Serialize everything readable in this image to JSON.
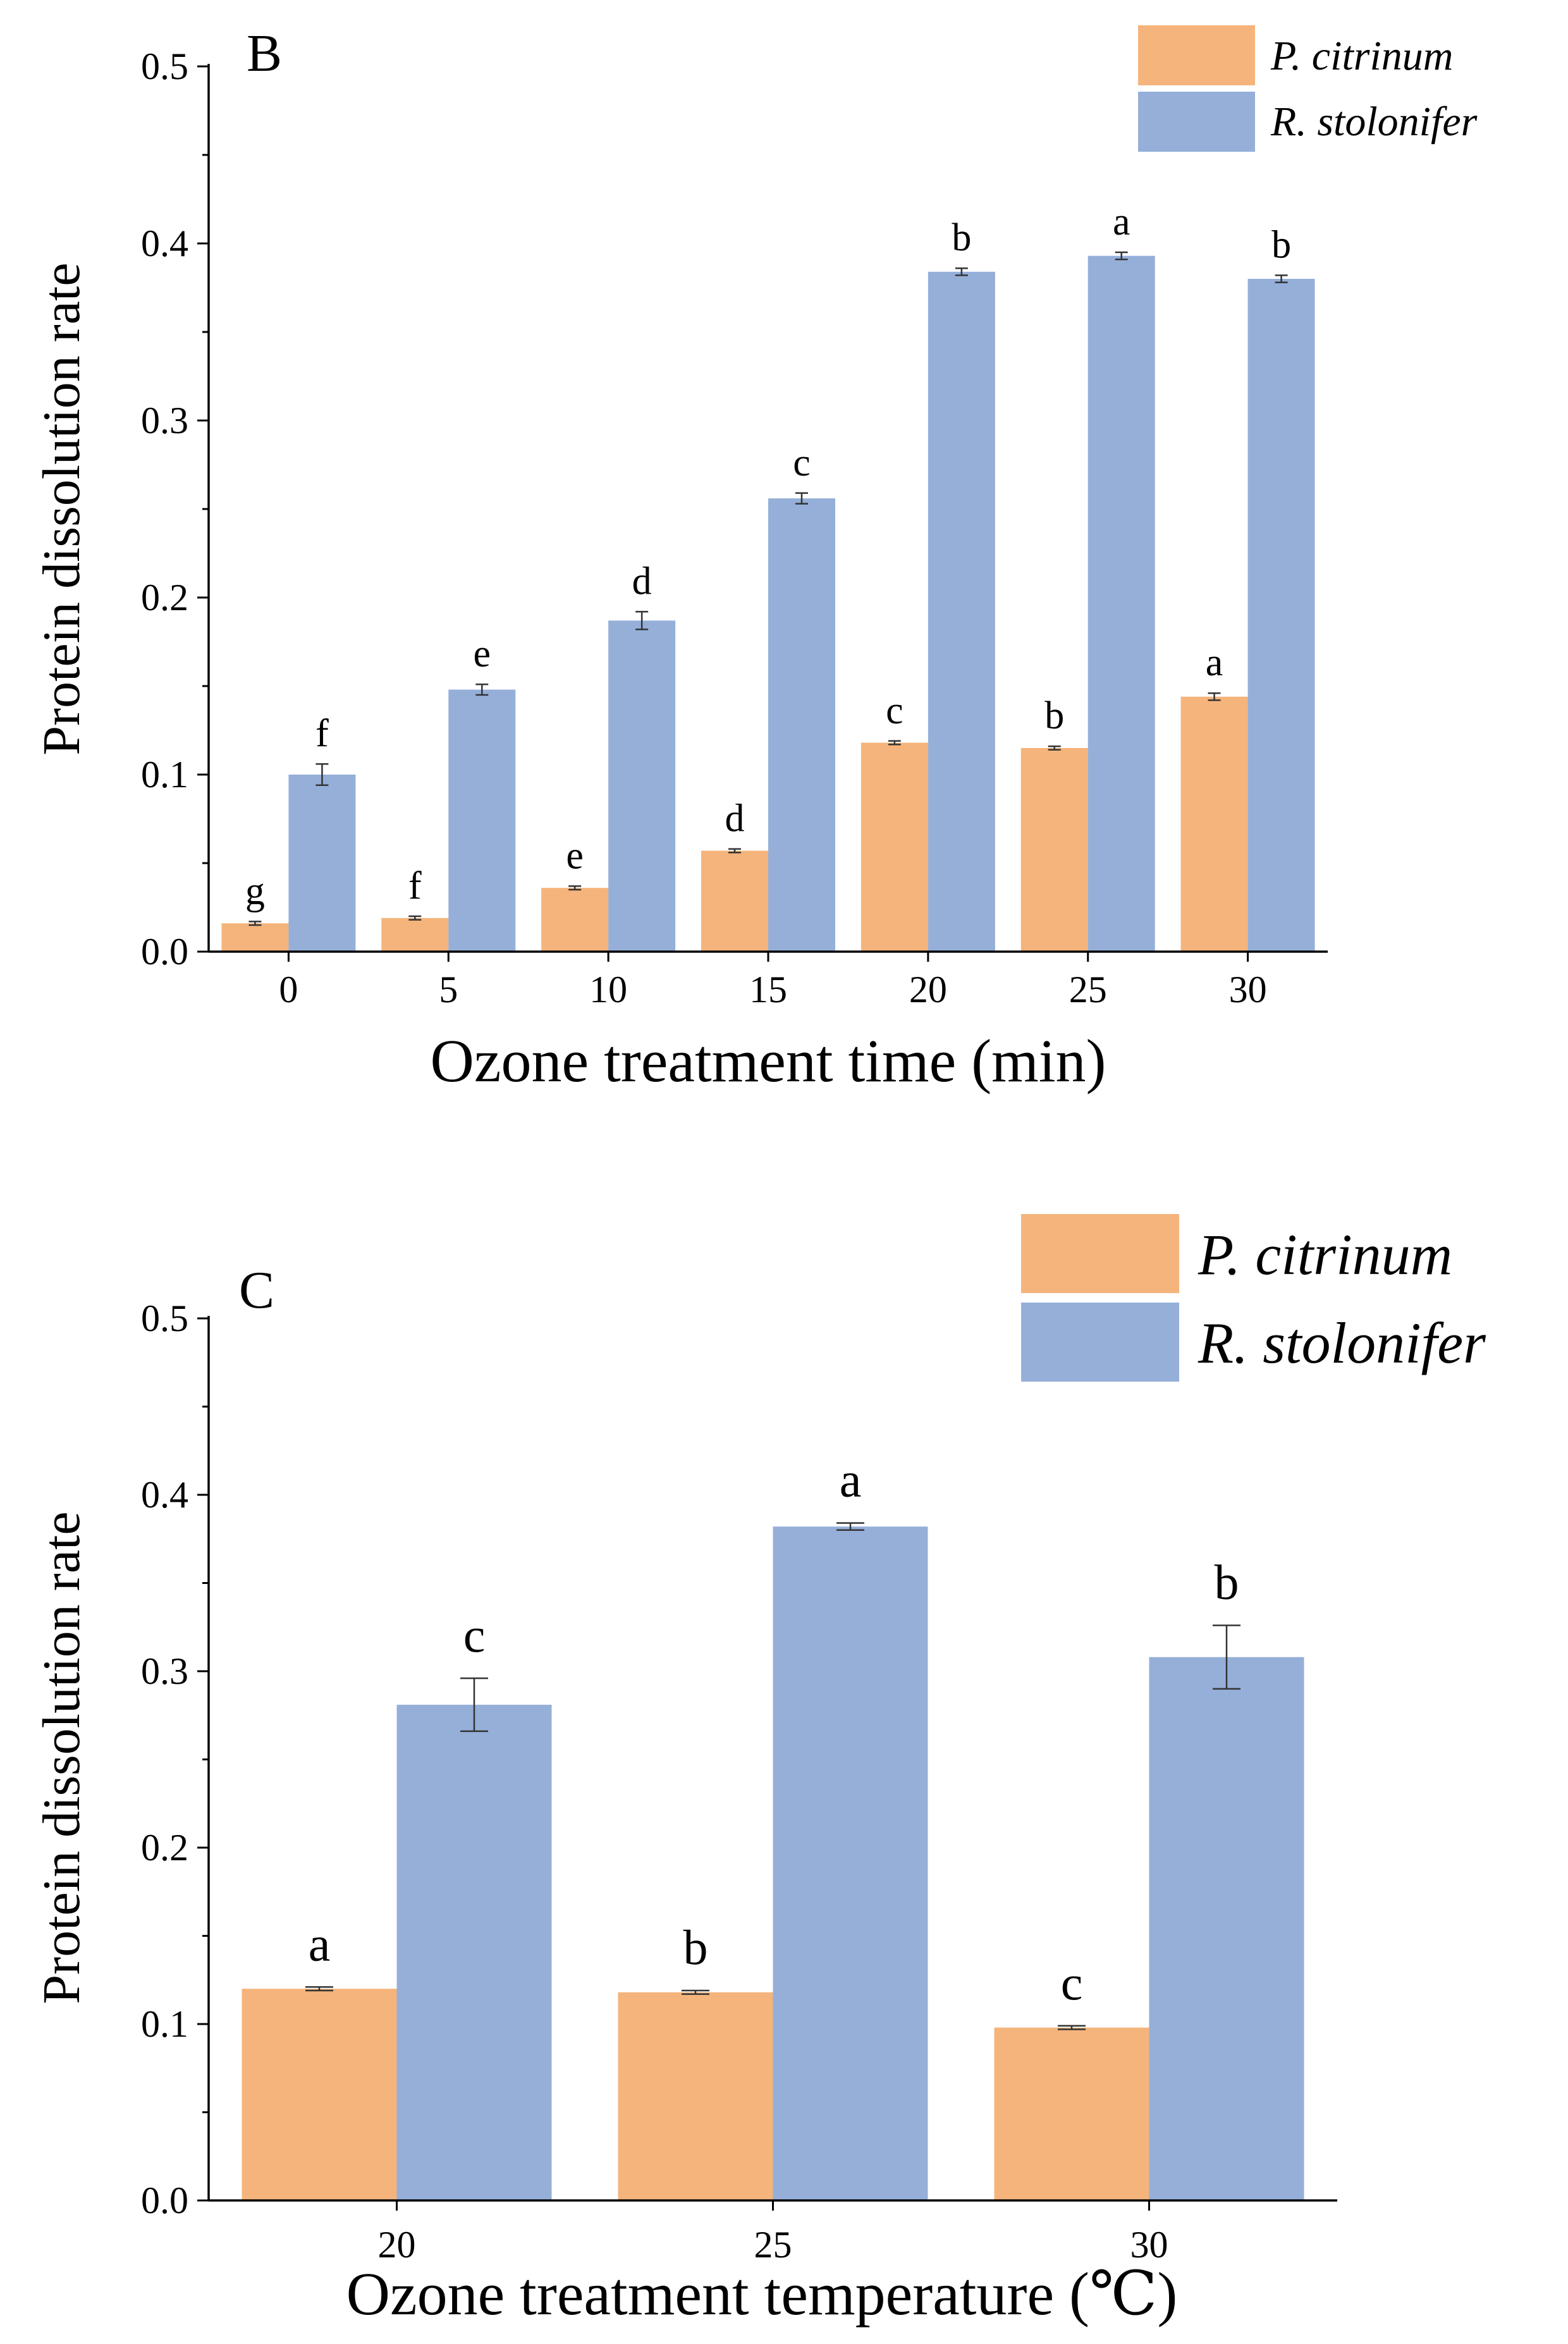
{
  "colors": {
    "p_citrinum": "#F5B47B",
    "r_stolonifer": "#95AFD9",
    "axis": "#000000"
  },
  "chart_data": [
    {
      "panel_label": "B",
      "type": "bar",
      "xlabel": "Ozone treatment time (min)",
      "ylabel": "Protein dissolution rate",
      "ylim": [
        0,
        0.5
      ],
      "yticks": [
        "0.0",
        "0.1",
        "0.2",
        "0.3",
        "0.4",
        "0.5"
      ],
      "categories": [
        "0",
        "5",
        "10",
        "15",
        "20",
        "25",
        "30"
      ],
      "legend_position": "top-right",
      "series": [
        {
          "name": "P. citrinum",
          "values": [
            0.016,
            0.019,
            0.036,
            0.057,
            0.118,
            0.115,
            0.144
          ],
          "errors": [
            0.001,
            0.001,
            0.001,
            0.001,
            0.001,
            0.001,
            0.002
          ],
          "letters": [
            "g",
            "f",
            "e",
            "d",
            "c",
            "b",
            "a"
          ]
        },
        {
          "name": "R. stolonifer",
          "values": [
            0.1,
            0.148,
            0.187,
            0.256,
            0.384,
            0.393,
            0.38
          ],
          "errors": [
            0.006,
            0.003,
            0.005,
            0.003,
            0.002,
            0.002,
            0.002
          ],
          "letters": [
            "f",
            "e",
            "d",
            "c",
            "b",
            "a",
            "b"
          ]
        }
      ]
    },
    {
      "panel_label": "C",
      "type": "bar",
      "xlabel": "Ozone treatment temperature (℃)",
      "ylabel": "Protein dissolution rate",
      "ylim": [
        0,
        0.5
      ],
      "yticks": [
        "0.0",
        "0.1",
        "0.2",
        "0.3",
        "0.4",
        "0.5"
      ],
      "categories": [
        "20",
        "25",
        "30"
      ],
      "legend_position": "top-right",
      "series": [
        {
          "name": "P. citrinum",
          "values": [
            0.12,
            0.118,
            0.098
          ],
          "errors": [
            0.001,
            0.001,
            0.001
          ],
          "letters": [
            "a",
            "b",
            "c"
          ]
        },
        {
          "name": "R. stolonifer",
          "values": [
            0.281,
            0.382,
            0.308
          ],
          "errors": [
            0.015,
            0.002,
            0.018
          ],
          "letters": [
            "c",
            "a",
            "b"
          ]
        }
      ]
    }
  ]
}
